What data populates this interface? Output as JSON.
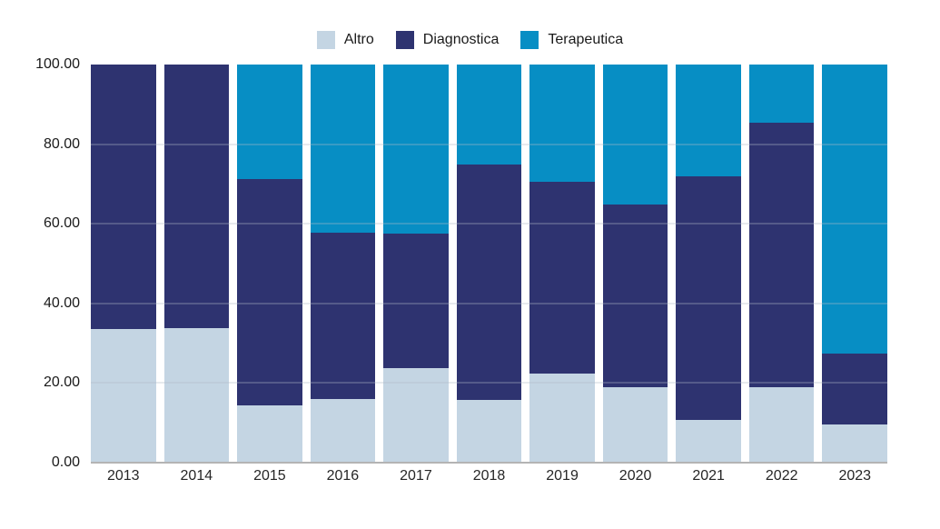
{
  "chart_data": {
    "type": "bar",
    "stacked": true,
    "orientation": "vertical",
    "title": "",
    "xlabel": "",
    "ylabel": "",
    "ylim": [
      0,
      100
    ],
    "yticks": [
      {
        "value": 0,
        "label": "0.00"
      },
      {
        "value": 20,
        "label": "20.00"
      },
      {
        "value": 40,
        "label": "40.00"
      },
      {
        "value": 60,
        "label": "60.00"
      },
      {
        "value": 80,
        "label": "80.00"
      },
      {
        "value": 100,
        "label": "100.00"
      }
    ],
    "grid": true,
    "gridline_values": [
      20,
      40,
      60,
      80
    ],
    "legend_position": "top",
    "categories": [
      "2013",
      "2014",
      "2015",
      "2016",
      "2017",
      "2018",
      "2019",
      "2020",
      "2021",
      "2022",
      "2023"
    ],
    "series": [
      {
        "name": "Altro",
        "color": "#c4d5e3",
        "values": [
          33.5,
          33.8,
          14.4,
          16.0,
          23.8,
          15.8,
          22.3,
          19.0,
          10.8,
          18.9,
          9.5
        ]
      },
      {
        "name": "Diagnostica",
        "color": "#2e3370",
        "values": [
          66.5,
          66.2,
          56.9,
          41.8,
          33.7,
          59.1,
          48.2,
          45.8,
          61.1,
          66.5,
          18.0
        ]
      },
      {
        "name": "Terapeutica",
        "color": "#078ec4",
        "values": [
          0.0,
          0.0,
          28.7,
          42.2,
          42.5,
          25.1,
          29.5,
          35.2,
          28.1,
          14.6,
          72.5
        ]
      }
    ]
  },
  "colors": {
    "background": "#ffffff",
    "axis_line": "#b4b4b4",
    "tick_text": "#1a1a1a"
  }
}
